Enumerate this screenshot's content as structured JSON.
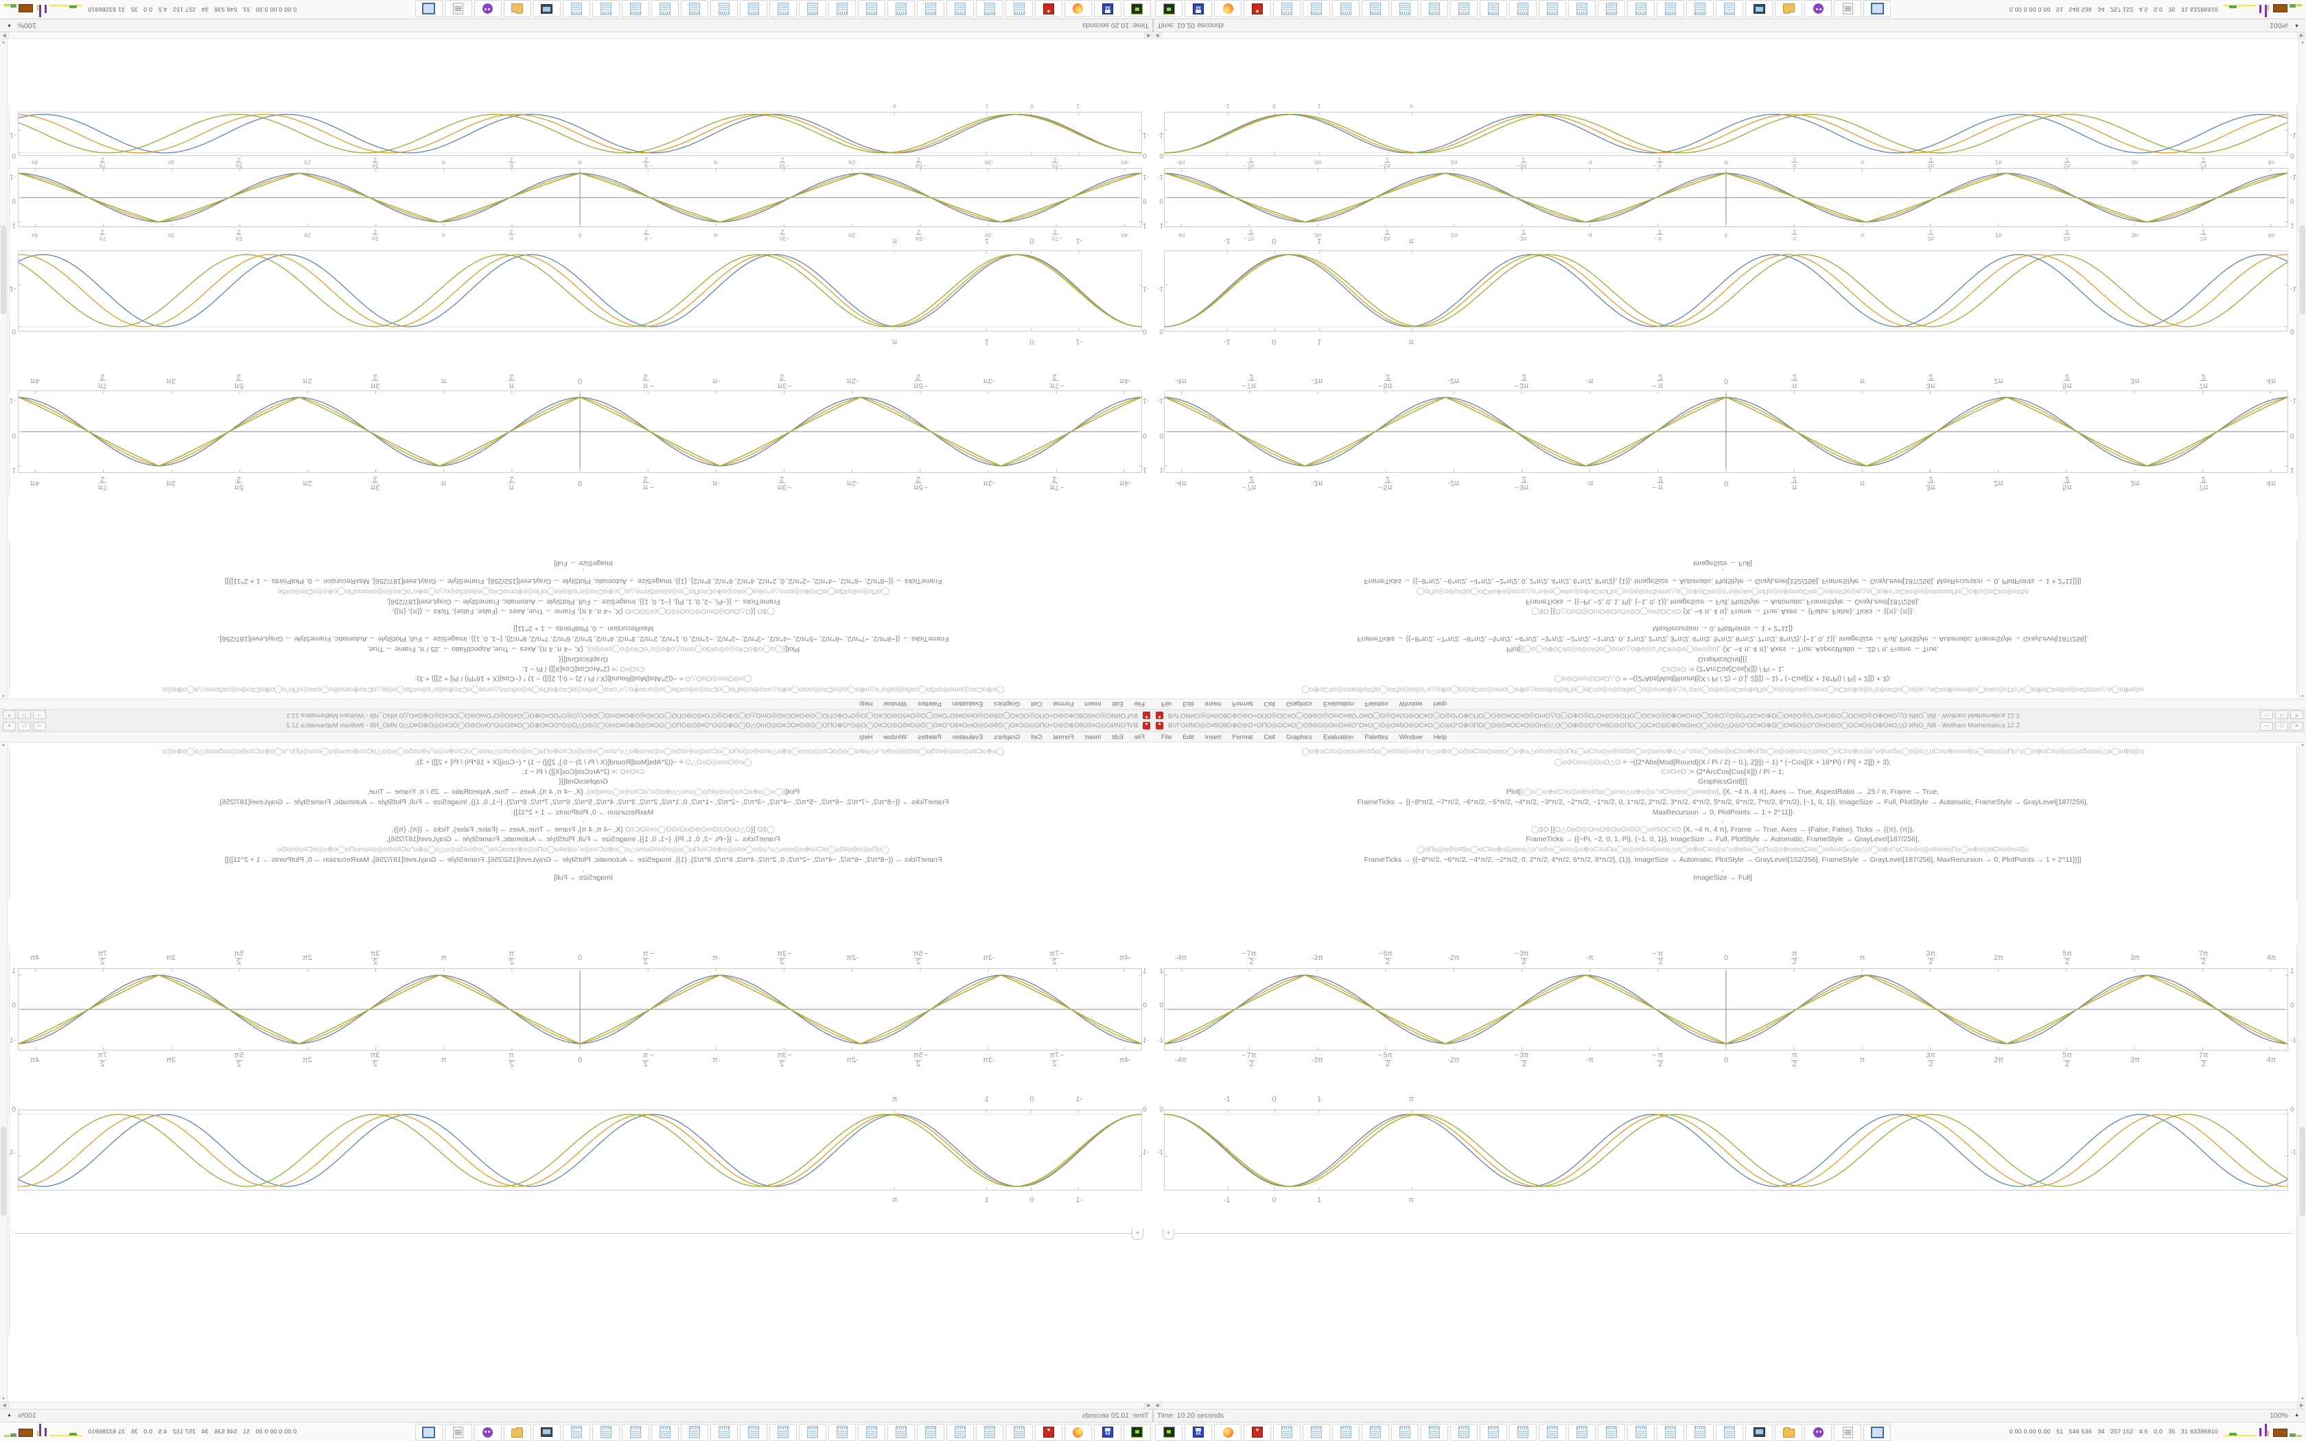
{
  "window": {
    "title_garbled": "BVΓOИNO◎O≡5O8O⊕O⊖O+OΠO◎OC≡O◯O9⊖O◎OmO≡6O°O≡O◯O◎O≡5O⊖OC≡O◯O◎O*O⊕OΠO◯O⊖O≡OC≡O◎OmO△O◯O⊕O◎O°O≡5O⊖OΠO◯OC≡O◎O⊕O≡OmO◯O⊖O△O◎O*OC≡O⊕O◯O≡5O◎O°OmO⊖O◯OC≡O◎O⊕O≡O△O",
    "title_suffix": "ИNO_NB - Wolfram Mathematica 12.2",
    "menu": [
      "File",
      "Edit",
      "Insert",
      "Format",
      "Cell",
      "Graphics",
      "Evaluation",
      "Palettes",
      "Window",
      "Help"
    ],
    "buttons": [
      {
        "name": "minimize-button",
        "glyph": "–"
      },
      {
        "name": "restore-button",
        "glyph": "□"
      },
      {
        "name": "close-button",
        "glyph": "×"
      }
    ],
    "app_icon_glyph": "*"
  },
  "notebook": {
    "insert_plus": "+",
    "code_lines": [
      {
        "parts": [
          {
            "k": "g",
            "t": "◯o⊕oC≡o◎omo⊖o≡5o◯o≡5o◎o⊖o°o△o⊕o◯o◎oC≡o◎omo◯o⊕o△o≡o⊖o◎oΠo◯oC≡o◎o⊖o≡5o◯o◎omo⊕o△o°o≡o◯o⊖o◎oC≡o⊕oΠo◯o◎o⊖o≡o△omo◯oC≡o⊕o◎o°o⊖o≡5o◯o◎o△oC≡o⊕omo⊖o◯o≡o◎oΠo°o◯o⊕oC≡o⊖o◎o≡5omo△o◯o⊕o◎o"
          }
        ]
      },
      {
        "parts": [
          {
            "k": "g",
            "t": "◯o⊖Omo◎OoO△O  "
          },
          {
            "k": "c",
            "t": "= −((2*Abs[Mod[Round[(X / Pi / 2) − 0.], 2])]) − 1) * (−Cos[(X + 16*Pi) / Pi] + 2]]) + 3);"
          }
        ]
      },
      {
        "parts": [
          {
            "k": "g",
            "t": "C≡O≡O "
          },
          {
            "k": "c",
            "t": ":= (2*ArcCos[Cos[X]]) / Pi  − 1;"
          }
        ]
      },
      {
        "parts": [
          {
            "k": "c",
            "t": "GraphicsGrid[{{"
          }
        ]
      },
      {
        "parts": [
          {
            "k": "c",
            "t": "Plot["
          },
          {
            "k": "g",
            "t": "{◯o◯o⊕oC≡o◎o⊖o≡5o◯omo△o⊕o◎o°oC≡o⊖o◯o≡o◎o}"
          },
          {
            "k": "c",
            "t": ", {X, −4 π, 4 π}, Axes → True, AspectRatio → .25 / π, Frame → True,"
          }
        ]
      },
      {
        "parts": [
          {
            "k": "c",
            "t": "FrameTicks → {{−8*π/2, −7*π/2, −6*π/2, −5*π/2, −4*π/2, −3*π/2, −2*π/2, −1*π/2, 0, 1*π/2, 2*π/2, 3*π/2, 4*π/2, 5*π/2, 6*π/2, 7*π/2, 8*π/2}, {−1, 0, 1}}, ImageSize → Full, PlotStyle → Automatic, FrameStyle → GrayLevel[187/256],"
          }
        ]
      },
      {
        "parts": [
          {
            "k": "c",
            "t": "MaxRecursion → 0, PlotPoints → 1 + 2^11]}"
          }
        ]
      },
      {
        "parts": [
          {
            "k": "c",
            "t": ","
          }
        ]
      },
      {
        "parts": [
          {
            "k": "g",
            "t": "◯$O "
          },
          {
            "k": "c",
            "t": "[{"
          },
          {
            "k": "g",
            "t": "O△OoO◎OmO⊖OoO≡5O◯o≡5OC≡O "
          },
          {
            "k": "c",
            "t": "{X, −4 π, 4 π}, Frame → True, Axes → {False, False}, Ticks → {{π}, {π}},"
          }
        ]
      },
      {
        "parts": [
          {
            "k": "c",
            "t": "FrameTicks → {{−Pi, −2, 0, 1, Pi}, {−1, 0, 1}}, ImageSize → Full, PlotStyle → Automatic, FrameStyle → GrayLevel[187/256],"
          }
        ]
      },
      {
        "parts": [
          {
            "k": "g",
            "t": "◯oΠo◎o⊖o≡5o◯oC≡o⊕o◎omo△o°o⊖o◯o≡o◎o⊕oC≡oΠo◯o◎o⊖o≡5omo△o◯o⊕oC≡o◎o°o⊖o≡o◯oΠo◎o⊕omoC≡o◯o⊖o≡5o◎o△o◯o⊕o°oC≡o⊖o◎o≡omoΠo◯o⊕o◎oC≡o⊖o≡5o"
          }
        ]
      },
      {
        "parts": [
          {
            "k": "c",
            "t": "FrameTicks → {{−8*π/2, −6*π/2, −4*π/2, −2*π/2, 0, 2*π/2, 4*π/2, 6*π/2, 8*π/2}, {1}}, ImageSize → Automatic, PlotStyle → GrayLevel[152/256], FrameStyle → GrayLevel[187/256], MaxRecursion → 0, PlotPoints → 1 + 2^11]}]]"
          }
        ]
      },
      {
        "parts": [
          {
            "k": "c",
            "t": ","
          }
        ]
      },
      {
        "parts": [
          {
            "k": "c",
            "t": "ImageSize → Full]"
          }
        ]
      }
    ]
  },
  "tick_sets": {
    "pi17": [
      {
        "t": "-4π"
      },
      {
        "s": "−",
        "n": "7π",
        "d": "2"
      },
      {
        "t": "-3π"
      },
      {
        "s": "−",
        "n": "5π",
        "d": "2"
      },
      {
        "t": "-2π"
      },
      {
        "s": "−",
        "n": "3π",
        "d": "2"
      },
      {
        "t": "-π"
      },
      {
        "s": "−",
        "n": "π",
        "d": "2"
      },
      {
        "t": "0"
      },
      {
        "n": "π",
        "d": "2"
      },
      {
        "t": "π"
      },
      {
        "n": "3π",
        "d": "2"
      },
      {
        "t": "2π"
      },
      {
        "n": "5π",
        "d": "2"
      },
      {
        "t": "3π"
      },
      {
        "n": "7π",
        "d": "2"
      },
      {
        "t": "4π"
      }
    ],
    "sparse4": [
      {
        "t": "-1",
        "pct": 5.6
      },
      {
        "t": "0",
        "pct": 9.8
      },
      {
        "t": "1",
        "pct": 13.8
      },
      {
        "t": "π",
        "pct": 22.0
      }
    ]
  },
  "chart_data": [
    {
      "id": "plotA",
      "type": "line",
      "title": "",
      "xlabel": "",
      "ylabel": "",
      "x_range": [
        -12.566,
        12.566
      ],
      "x_tick_step": "π/2",
      "x_ticks_set": "pi17",
      "y_ticks": [
        1,
        0,
        -1
      ],
      "ylim": [
        -1.18,
        1.18
      ],
      "frame": true,
      "axes": true,
      "grid": false,
      "legend": "none",
      "description": "Three overlaid waves, period 2π, minima −1 at even multiples of π (0, ±2π, ±4π), maxima +1 at odd multiples of π; blue is most rounded (cosine-like), green is most triangular.",
      "series": [
        {
          "name": "curve-blue",
          "color": "#5E81B5",
          "shape_blend": 0.9
        },
        {
          "name": "curve-orange",
          "color": "#E19C24",
          "shape_blend": 0.5
        },
        {
          "name": "curve-green",
          "color": "#8FB032",
          "shape_blend": 0.12
        }
      ]
    },
    {
      "id": "plotB",
      "type": "line",
      "title": "",
      "xlabel": "",
      "ylabel": "",
      "x_ticks_set": "sparse4",
      "x_tick_labels": [
        "-1",
        "0",
        "1",
        "π"
      ],
      "y_ticks": [
        0,
        -1
      ],
      "ylim": [
        -1.8,
        0.1
      ],
      "frame": true,
      "axes": false,
      "grid": false,
      "legend": "none",
      "periods_across": 4.6,
      "depth": 1.72,
      "description": "Three cosine-like waves starting at 0 at the left edge, oscillating between 0 and about −1.72; the green curve has a slightly longer period so it drifts right.",
      "series": [
        {
          "name": "curve-blue",
          "color": "#5E81B5",
          "k": 1.0
        },
        {
          "name": "curve-orange",
          "color": "#E19C24",
          "k": 0.98
        },
        {
          "name": "curve-green",
          "color": "#8FB032",
          "k": 0.955
        }
      ]
    },
    {
      "id": "plotD",
      "type": "line",
      "title": "",
      "xlabel": "",
      "ylabel": "",
      "x_range": [
        -12.566,
        12.566
      ],
      "x_ticks_set": "pi17",
      "y_ticks": [
        1,
        0,
        -1
      ],
      "ylim": [
        -1.18,
        1.18
      ],
      "frame": true,
      "axes": true,
      "grid": false,
      "legend": "none",
      "description": "Compact copy of the triangle/cosine wave plot (top-half variant only).",
      "series": [
        {
          "name": "curve-blue",
          "color": "#5E81B5",
          "shape_blend": 0.9
        },
        {
          "name": "curve-orange",
          "color": "#E19C24",
          "shape_blend": 0.5
        },
        {
          "name": "curve-green",
          "color": "#8FB032",
          "shape_blend": 0.12
        }
      ]
    },
    {
      "id": "plotE",
      "type": "line",
      "title": "",
      "xlabel": "",
      "ylabel": "",
      "x_ticks_set": "sparse4",
      "y_ticks": [
        0,
        -1
      ],
      "ylim": [
        -1.8,
        0.1
      ],
      "frame": true,
      "axes": false,
      "periods_across": 4.6,
      "depth": 1.72,
      "description": "Compact copy of the drifting cosine plot (top-half variant only).",
      "series": [
        {
          "name": "curve-blue",
          "color": "#5E81B5",
          "k": 1.0
        },
        {
          "name": "curve-orange",
          "color": "#E19C24",
          "k": 0.975
        },
        {
          "name": "curve-green",
          "color": "#8FB032",
          "k": 0.945
        }
      ]
    }
  ],
  "scrollbar": {
    "left_arrow": "◀",
    "right_arrow": "▶",
    "up_arrow": "▲",
    "down_arrow": "▼"
  },
  "statusbar": {
    "time_label": "Time: 10.20 seconds",
    "zoom_label": "100%",
    "zoom_arrow": "▲"
  },
  "taskbar": {
    "buttons": [
      "vm",
      "floppy",
      "ff",
      "gear",
      "note",
      "note",
      "note",
      "note",
      "note",
      "note",
      "note",
      "note",
      "note",
      "note",
      "note",
      "note",
      "note",
      "note",
      "note",
      "note",
      "mon",
      "folder",
      "purple",
      "scroll",
      "window"
    ],
    "floppy_label": "64",
    "sysmon_values": "0.00 0.00 0.00   51   546 536   34   257 152   4.5   0.0   35   31 63286910",
    "sysmon_percent": "100%"
  },
  "colors": {
    "plot_blue": "#5E81B5",
    "plot_orange": "#E19C24",
    "plot_green": "#8FB032",
    "frame_gray": "#CCCCCC",
    "axis_gray": "#808080",
    "tick_text": "#9A9A9A",
    "titlebar_bg": "#F0F0F0",
    "taskbar_bg": "#FAFAFA",
    "app_icon_red": "#C9281E"
  }
}
